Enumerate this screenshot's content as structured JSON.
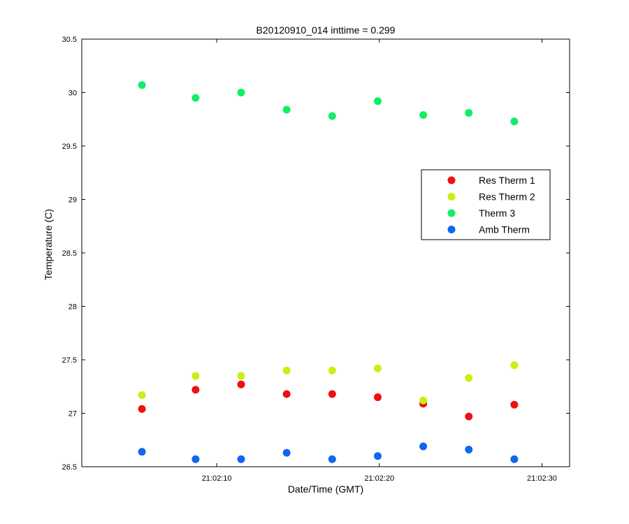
{
  "chart_data": {
    "type": "scatter",
    "title": "B20120910_014 inttime = 0.299",
    "xlabel": "Date/Time (GMT)",
    "ylabel": "Temperature (C)",
    "x_unit": "time",
    "xlim": [
      "21:02:01.7",
      "21:02:31.7"
    ],
    "ylim": [
      26.5,
      30.5
    ],
    "x_ticks": [
      "21:02:10",
      "21:02:20",
      "21:02:30"
    ],
    "y_ticks": [
      "26.5",
      "27",
      "27.5",
      "28",
      "28.5",
      "29",
      "29.5",
      "30",
      "30.5"
    ],
    "grid": false,
    "legend_position": "right, upper-middle",
    "x": [
      "21:02:05.4",
      "21:02:08.7",
      "21:02:11.5",
      "21:02:14.3",
      "21:02:17.1",
      "21:02:19.9",
      "21:02:22.7",
      "21:02:25.5",
      "21:02:28.3"
    ],
    "series": [
      {
        "name": "Res Therm 1",
        "color": "#ee1111",
        "values": [
          27.04,
          27.22,
          27.27,
          27.18,
          27.18,
          27.15,
          27.09,
          26.97,
          27.08
        ]
      },
      {
        "name": "Res Therm 2",
        "color": "#ccee11",
        "values": [
          27.17,
          27.35,
          27.35,
          27.4,
          27.4,
          27.42,
          27.12,
          27.33,
          27.45
        ]
      },
      {
        "name": "Therm 3",
        "color": "#11ee66",
        "values": [
          30.07,
          29.95,
          30.0,
          29.84,
          29.78,
          29.92,
          29.79,
          29.81,
          29.73
        ]
      },
      {
        "name": "Amb Therm",
        "color": "#1166ee",
        "values": [
          26.64,
          26.57,
          26.57,
          26.63,
          26.57,
          26.6,
          26.69,
          26.66,
          26.57
        ]
      }
    ]
  }
}
